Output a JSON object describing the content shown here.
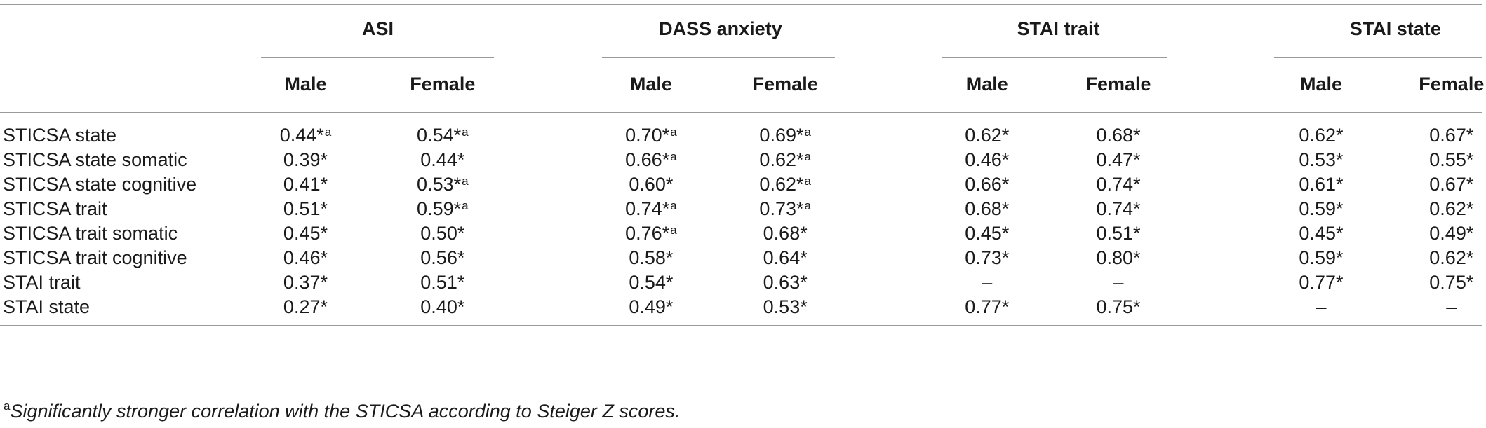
{
  "table": {
    "groups": [
      "ASI",
      "DASS anxiety",
      "STAI trait",
      "STAI state"
    ],
    "subheaders": [
      "Male",
      "Female",
      "Male",
      "Female",
      "Male",
      "Female",
      "Male",
      "Female"
    ],
    "rows": [
      {
        "label": "STICSA state",
        "cells": [
          {
            "v": "0.44*",
            "sup": "a"
          },
          {
            "v": "0.54*",
            "sup": "a"
          },
          {
            "v": "0.70*",
            "sup": "a"
          },
          {
            "v": "0.69*",
            "sup": "a"
          },
          {
            "v": "0.62*",
            "sup": ""
          },
          {
            "v": "0.68*",
            "sup": ""
          },
          {
            "v": "0.62*",
            "sup": ""
          },
          {
            "v": "0.67*",
            "sup": ""
          }
        ]
      },
      {
        "label": "STICSA state somatic",
        "cells": [
          {
            "v": "0.39*",
            "sup": ""
          },
          {
            "v": "0.44*",
            "sup": ""
          },
          {
            "v": "0.66*",
            "sup": "a"
          },
          {
            "v": "0.62*",
            "sup": "a"
          },
          {
            "v": "0.46*",
            "sup": ""
          },
          {
            "v": "0.47*",
            "sup": ""
          },
          {
            "v": "0.53*",
            "sup": ""
          },
          {
            "v": "0.55*",
            "sup": ""
          }
        ]
      },
      {
        "label": "STICSA state cognitive",
        "cells": [
          {
            "v": "0.41*",
            "sup": ""
          },
          {
            "v": "0.53*",
            "sup": "a"
          },
          {
            "v": "0.60*",
            "sup": ""
          },
          {
            "v": "0.62*",
            "sup": "a"
          },
          {
            "v": "0.66*",
            "sup": ""
          },
          {
            "v": "0.74*",
            "sup": ""
          },
          {
            "v": "0.61*",
            "sup": ""
          },
          {
            "v": "0.67*",
            "sup": ""
          }
        ]
      },
      {
        "label": "STICSA trait",
        "cells": [
          {
            "v": "0.51*",
            "sup": ""
          },
          {
            "v": "0.59*",
            "sup": "a"
          },
          {
            "v": "0.74*",
            "sup": "a"
          },
          {
            "v": "0.73*",
            "sup": "a"
          },
          {
            "v": "0.68*",
            "sup": ""
          },
          {
            "v": "0.74*",
            "sup": ""
          },
          {
            "v": "0.59*",
            "sup": ""
          },
          {
            "v": "0.62*",
            "sup": ""
          }
        ]
      },
      {
        "label": "STICSA trait somatic",
        "cells": [
          {
            "v": "0.45*",
            "sup": ""
          },
          {
            "v": "0.50*",
            "sup": ""
          },
          {
            "v": "0.76*",
            "sup": "a"
          },
          {
            "v": "0.68*",
            "sup": ""
          },
          {
            "v": "0.45*",
            "sup": ""
          },
          {
            "v": "0.51*",
            "sup": ""
          },
          {
            "v": "0.45*",
            "sup": ""
          },
          {
            "v": "0.49*",
            "sup": ""
          }
        ]
      },
      {
        "label": "STICSA trait cognitive",
        "cells": [
          {
            "v": "0.46*",
            "sup": ""
          },
          {
            "v": "0.56*",
            "sup": ""
          },
          {
            "v": "0.58*",
            "sup": ""
          },
          {
            "v": "0.64*",
            "sup": ""
          },
          {
            "v": "0.73*",
            "sup": ""
          },
          {
            "v": "0.80*",
            "sup": ""
          },
          {
            "v": "0.59*",
            "sup": ""
          },
          {
            "v": "0.62*",
            "sup": ""
          }
        ]
      },
      {
        "label": "STAI trait",
        "cells": [
          {
            "v": "0.37*",
            "sup": ""
          },
          {
            "v": "0.51*",
            "sup": ""
          },
          {
            "v": "0.54*",
            "sup": ""
          },
          {
            "v": "0.63*",
            "sup": ""
          },
          {
            "v": "–",
            "sup": ""
          },
          {
            "v": "–",
            "sup": ""
          },
          {
            "v": "0.77*",
            "sup": ""
          },
          {
            "v": "0.75*",
            "sup": ""
          }
        ]
      },
      {
        "label": "STAI state",
        "cells": [
          {
            "v": "0.27*",
            "sup": ""
          },
          {
            "v": "0.40*",
            "sup": ""
          },
          {
            "v": "0.49*",
            "sup": ""
          },
          {
            "v": "0.53*",
            "sup": ""
          },
          {
            "v": "0.77*",
            "sup": ""
          },
          {
            "v": "0.75*",
            "sup": ""
          },
          {
            "v": "–",
            "sup": ""
          },
          {
            "v": "–",
            "sup": ""
          }
        ]
      }
    ],
    "footnote": {
      "marker": "a",
      "text": "Significantly stronger correlation with the STICSA according to Steiger Z scores."
    }
  }
}
